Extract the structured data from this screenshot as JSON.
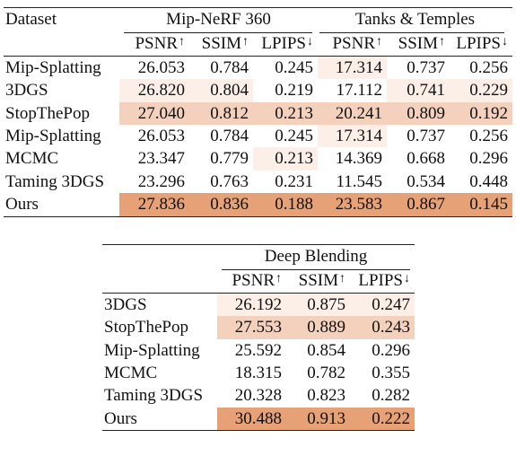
{
  "table_top": {
    "dataset_label": "Dataset",
    "groups": [
      "Mip-NeRF 360",
      "Tanks & Temples"
    ],
    "metrics": [
      {
        "name": "PSNR",
        "arrow": "↑"
      },
      {
        "name": "SSIM",
        "arrow": "↑"
      },
      {
        "name": "LPIPS",
        "arrow": "↓"
      }
    ],
    "rows": [
      {
        "method": "Mip-Splatting",
        "values": [
          "26.053",
          "0.784",
          "0.245",
          "17.314",
          "0.737",
          "0.256"
        ]
      },
      {
        "method": "3DGS",
        "values": [
          "26.820",
          "0.804",
          "0.219",
          "17.112",
          "0.741",
          "0.229"
        ]
      },
      {
        "method": "StopThePop",
        "values": [
          "27.040",
          "0.812",
          "0.213",
          "20.241",
          "0.809",
          "0.192"
        ]
      },
      {
        "method": "Mip-Splatting",
        "values": [
          "26.053",
          "0.784",
          "0.245",
          "17.314",
          "0.737",
          "0.256"
        ]
      },
      {
        "method": "MCMC",
        "values": [
          "23.347",
          "0.779",
          "0.213",
          "14.369",
          "0.668",
          "0.296"
        ]
      },
      {
        "method": "Taming 3DGS",
        "values": [
          "23.296",
          "0.763",
          "0.231",
          "11.545",
          "0.534",
          "0.448"
        ]
      },
      {
        "method": "Ours",
        "values": [
          "27.836",
          "0.836",
          "0.188",
          "23.583",
          "0.867",
          "0.145"
        ]
      }
    ]
  },
  "table_bottom": {
    "group": "Deep Blending",
    "metrics": [
      {
        "name": "PSNR",
        "arrow": "↑"
      },
      {
        "name": "SSIM",
        "arrow": "↑"
      },
      {
        "name": "LPIPS",
        "arrow": "↓"
      }
    ],
    "rows": [
      {
        "method": "3DGS",
        "values": [
          "26.192",
          "0.875",
          "0.247"
        ]
      },
      {
        "method": "StopThePop",
        "values": [
          "27.553",
          "0.889",
          "0.243"
        ]
      },
      {
        "method": "Mip-Splatting",
        "values": [
          "25.592",
          "0.854",
          "0.296"
        ]
      },
      {
        "method": "MCMC",
        "values": [
          "18.315",
          "0.782",
          "0.355"
        ]
      },
      {
        "method": "Taming 3DGS",
        "values": [
          "20.328",
          "0.823",
          "0.282"
        ]
      },
      {
        "method": "Ours",
        "values": [
          "30.488",
          "0.913",
          "0.222"
        ]
      }
    ]
  },
  "highlight_colors": {
    "best": "#e8a67c",
    "second": "#f3d1bc",
    "third": "#fbefe7"
  }
}
